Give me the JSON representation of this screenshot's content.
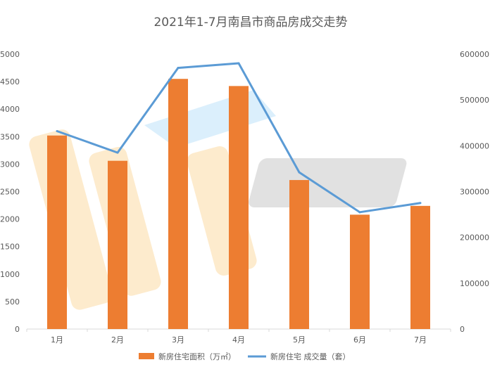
{
  "chart_data": {
    "type": "bar",
    "title": "2021年1-7月南昌市商品房成交走势",
    "categories": [
      "1月",
      "2月",
      "3月",
      "4月",
      "5月",
      "6月",
      "7月"
    ],
    "series": [
      {
        "name": "新房住宅面积（万㎡）",
        "type": "bar",
        "axis": "left",
        "color": "#ED7D31",
        "values": [
          3520,
          3060,
          4550,
          4420,
          2710,
          2080,
          2240
        ]
      },
      {
        "name": "新房住宅 成交量（套）",
        "type": "line",
        "axis": "right",
        "color": "#5B9BD5",
        "values": [
          432000,
          385000,
          570000,
          580000,
          342000,
          255000,
          275000
        ]
      }
    ],
    "y_left": {
      "min": 0,
      "max": 5000,
      "step": 500
    },
    "y_right": {
      "min": 0,
      "max": 600000,
      "step": 100000
    },
    "grid": false,
    "legend": "bottom"
  }
}
